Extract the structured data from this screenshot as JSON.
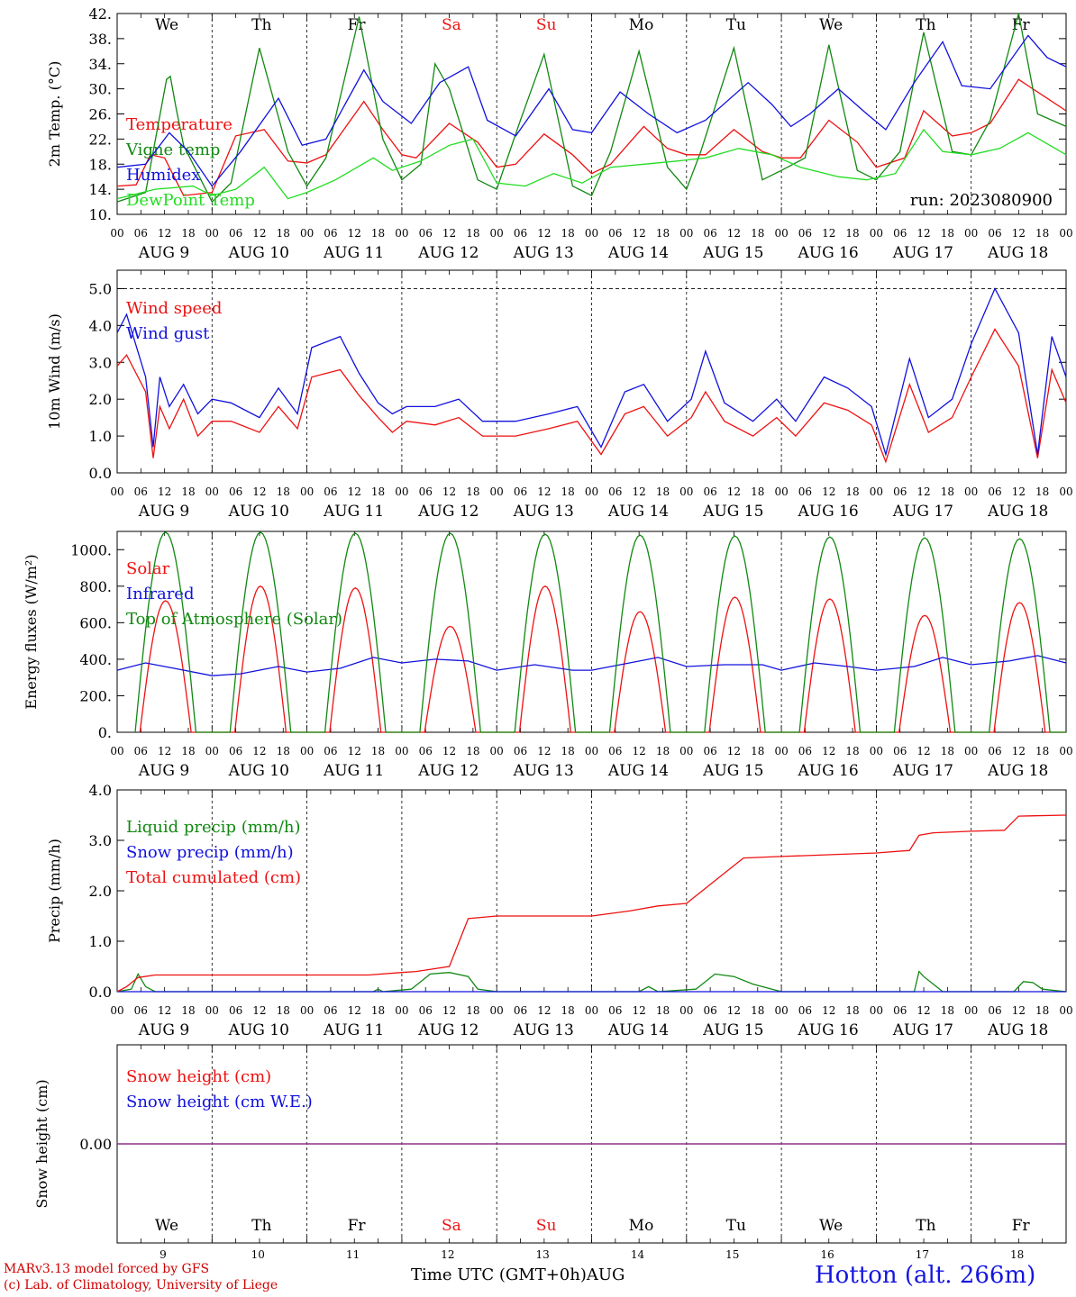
{
  "colors": {
    "red": "#ee1111",
    "green": "#118811",
    "blue": "#1111dd",
    "lightgreen": "#22dd22",
    "purple": "#7a2a9a",
    "axis": "#000000"
  },
  "weekdays": [
    "We",
    "Th",
    "Fr",
    "Sa",
    "Su",
    "Mo",
    "Tu",
    "We",
    "Th",
    "Fr"
  ],
  "weekend_days": [
    "Sa",
    "Su"
  ],
  "hour_ticks": [
    "00",
    "06",
    "12",
    "18"
  ],
  "date_labels": [
    "AUG  9",
    "AUG 10",
    "AUG 11",
    "AUG 12",
    "AUG 13",
    "AUG 14",
    "AUG 15",
    "AUG 16",
    "AUG 17",
    "AUG 18"
  ],
  "day_numbers": [
    "9",
    "10",
    "11",
    "12",
    "13",
    "14",
    "15",
    "16",
    "17",
    "18"
  ],
  "run_label": "run: 2023080900",
  "footer": {
    "model": "MARv3.13 model forced by GFS",
    "credit": "(c) Lab. of Climatology, University of Liege",
    "time_axis": "Time UTC (GMT+0h)",
    "month": "AUG",
    "site": "Hotton (alt. 266m)"
  },
  "chart_data": [
    {
      "type": "line",
      "id": "temp",
      "ylabel": "2m Temp. (°C)",
      "ylim": [
        10,
        42
      ],
      "yticks": [
        "10.",
        "14.",
        "18.",
        "22.",
        "26.",
        "30.",
        "34.",
        "38.",
        "42."
      ],
      "x_unit": "days since 2023-08-09 00 UTC",
      "series": [
        {
          "name": "Temperature",
          "color": "red",
          "x": [
            0,
            0.2,
            0.35,
            0.5,
            0.7,
            1,
            1.25,
            1.55,
            1.8,
            2,
            2.2,
            2.6,
            2.8,
            3,
            3.15,
            3.5,
            3.8,
            4,
            4.2,
            4.5,
            4.8,
            5,
            5.2,
            5.55,
            5.8,
            6,
            6.2,
            6.5,
            6.8,
            7,
            7.2,
            7.5,
            7.8,
            8,
            8.3,
            8.5,
            8.8,
            9,
            9.2,
            9.5,
            9.8,
            10
          ],
          "y": [
            14.5,
            14.7,
            19.5,
            19,
            13,
            13.5,
            22.5,
            23.5,
            18.5,
            18.2,
            19.5,
            28,
            23.5,
            19.5,
            19,
            24.5,
            21.5,
            17.5,
            18,
            22.8,
            19.5,
            16.5,
            18,
            24,
            20.5,
            19.5,
            19.5,
            23.5,
            20,
            19,
            19,
            25,
            21.5,
            17.5,
            19,
            26.5,
            22.5,
            23,
            24.5,
            31.5,
            28.5,
            26.5
          ]
        },
        {
          "name": "Vigne temp",
          "color": "green",
          "x": [
            0,
            0.3,
            0.52,
            0.56,
            0.62,
            0.7,
            1,
            1.2,
            1.5,
            1.8,
            2,
            2.2,
            2.55,
            2.8,
            3,
            3.2,
            3.35,
            3.5,
            3.8,
            4,
            4.25,
            4.5,
            4.8,
            5,
            5.2,
            5.5,
            5.8,
            6,
            6.15,
            6.5,
            6.8,
            7,
            7.25,
            7.5,
            7.8,
            8,
            8.25,
            8.5,
            8.8,
            9,
            9.2,
            9.5,
            9.7,
            10
          ],
          "y": [
            12,
            13.5,
            31.5,
            32,
            27,
            21,
            12,
            15,
            36.5,
            20,
            14.5,
            19,
            41.5,
            22,
            15.5,
            18,
            34,
            30,
            15.5,
            14,
            25,
            35.5,
            14.5,
            13,
            20,
            36,
            17.5,
            14,
            20,
            36.5,
            15.5,
            17,
            19,
            37,
            17,
            15.5,
            20,
            39,
            20,
            19.5,
            25,
            42,
            26,
            24
          ]
        },
        {
          "name": "Humidex",
          "color": "blue",
          "x": [
            0,
            0.3,
            0.55,
            0.75,
            1,
            1.3,
            1.7,
            1.95,
            2.2,
            2.6,
            2.8,
            3.1,
            3.4,
            3.7,
            3.9,
            4.2,
            4.55,
            4.8,
            5,
            5.3,
            5.6,
            5.9,
            6.2,
            6.65,
            6.9,
            7.1,
            7.3,
            7.6,
            7.9,
            8.1,
            8.4,
            8.7,
            8.9,
            9.2,
            9.6,
            9.8,
            10
          ],
          "y": [
            17.5,
            18,
            23,
            20,
            14.5,
            20,
            28.5,
            21,
            22,
            33,
            28,
            24.5,
            31,
            33.5,
            25,
            22.5,
            30,
            23.5,
            23,
            29.5,
            26,
            23,
            25,
            31,
            27.5,
            24,
            26,
            30,
            26,
            23.5,
            31,
            37.5,
            30.5,
            30,
            38.5,
            35,
            33.5
          ]
        },
        {
          "name": "DewPoint Temp",
          "color": "lightgreen",
          "x": [
            0,
            0.4,
            0.8,
            1,
            1.25,
            1.55,
            1.8,
            2,
            2.3,
            2.7,
            2.9,
            3.2,
            3.5,
            3.75,
            4,
            4.3,
            4.6,
            4.9,
            5.2,
            5.55,
            5.9,
            6.2,
            6.55,
            6.9,
            7.2,
            7.6,
            7.9,
            8.2,
            8.5,
            8.7,
            9,
            9.3,
            9.6,
            10
          ],
          "y": [
            12.5,
            14,
            14.5,
            13,
            14,
            17.5,
            12.5,
            13.5,
            15.5,
            19,
            17,
            18.5,
            21,
            22,
            15,
            14.5,
            16.5,
            15,
            17.5,
            18,
            18.5,
            19,
            20.5,
            19.5,
            17.5,
            16,
            15.5,
            16.5,
            23.5,
            20,
            19.5,
            20.5,
            23,
            19.5
          ]
        }
      ]
    },
    {
      "type": "line",
      "id": "wind",
      "ylabel": "10m Wind (m/s)",
      "ylim": [
        0,
        5.5
      ],
      "yticks": [
        "0.0",
        "1.0",
        "2.0",
        "3.0",
        "4.0",
        "5.0"
      ],
      "series": [
        {
          "name": "Wind speed",
          "color": "red",
          "x": [
            0,
            0.1,
            0.3,
            0.38,
            0.45,
            0.55,
            0.7,
            0.85,
            1,
            1.2,
            1.5,
            1.7,
            1.9,
            2.05,
            2.35,
            2.55,
            2.75,
            2.9,
            3.05,
            3.35,
            3.6,
            3.85,
            4.2,
            4.55,
            4.85,
            5.1,
            5.35,
            5.55,
            5.8,
            6.05,
            6.2,
            6.4,
            6.7,
            6.95,
            7.15,
            7.45,
            7.7,
            7.95,
            8.1,
            8.35,
            8.55,
            8.8,
            9,
            9.25,
            9.5,
            9.7,
            9.85,
            10
          ],
          "y": [
            2.9,
            3.2,
            2.2,
            0.4,
            1.8,
            1.2,
            2.0,
            1.0,
            1.4,
            1.4,
            1.1,
            1.8,
            1.2,
            2.6,
            2.8,
            2.1,
            1.5,
            1.1,
            1.4,
            1.3,
            1.5,
            1.0,
            1.0,
            1.2,
            1.4,
            0.5,
            1.6,
            1.8,
            1.0,
            1.5,
            2.2,
            1.4,
            1.0,
            1.5,
            1.0,
            1.9,
            1.7,
            1.3,
            0.3,
            2.4,
            1.1,
            1.5,
            2.6,
            3.9,
            2.9,
            0.4,
            2.8,
            1.9
          ]
        },
        {
          "name": "Wind gust",
          "color": "blue",
          "x": [
            0,
            0.1,
            0.3,
            0.38,
            0.45,
            0.55,
            0.7,
            0.85,
            1,
            1.2,
            1.5,
            1.7,
            1.9,
            2.05,
            2.35,
            2.55,
            2.75,
            2.9,
            3.05,
            3.35,
            3.6,
            3.85,
            4.2,
            4.55,
            4.85,
            5.1,
            5.35,
            5.55,
            5.8,
            6.05,
            6.2,
            6.4,
            6.7,
            6.95,
            7.15,
            7.45,
            7.7,
            7.95,
            8.1,
            8.35,
            8.55,
            8.8,
            9,
            9.25,
            9.5,
            9.7,
            9.85,
            10
          ],
          "y": [
            3.8,
            4.3,
            2.6,
            0.7,
            2.6,
            1.8,
            2.4,
            1.6,
            2.0,
            1.9,
            1.5,
            2.3,
            1.6,
            3.4,
            3.7,
            2.7,
            1.9,
            1.6,
            1.8,
            1.8,
            2.0,
            1.4,
            1.4,
            1.6,
            1.8,
            0.7,
            2.2,
            2.4,
            1.4,
            2.0,
            3.3,
            1.9,
            1.4,
            2.0,
            1.4,
            2.6,
            2.3,
            1.8,
            0.5,
            3.1,
            1.5,
            2.0,
            3.5,
            5.0,
            3.8,
            0.5,
            3.7,
            2.6
          ]
        }
      ]
    },
    {
      "type": "line",
      "id": "energy",
      "ylabel": "Energy fluxes (W/m²)",
      "ylim": [
        0,
        1100
      ],
      "yticks": [
        "0.",
        "200.",
        "400.",
        "600.",
        "800.",
        "1000."
      ],
      "series": [
        {
          "name": "Solar",
          "color": "red",
          "day_peaks": [
            720,
            800,
            790,
            580,
            800,
            660,
            740,
            730,
            640,
            710
          ]
        },
        {
          "name": "Infrared",
          "color": "blue",
          "x": [
            0,
            0.3,
            0.6,
            1,
            1.3,
            1.7,
            2,
            2.35,
            2.7,
            3,
            3.35,
            3.7,
            4,
            4.4,
            4.8,
            5,
            5.4,
            5.7,
            6,
            6.4,
            6.8,
            7,
            7.35,
            7.7,
            8,
            8.4,
            8.7,
            9,
            9.4,
            9.7,
            10
          ],
          "y": [
            340,
            380,
            350,
            310,
            320,
            360,
            330,
            350,
            410,
            380,
            400,
            390,
            340,
            370,
            340,
            340,
            380,
            410,
            360,
            370,
            370,
            340,
            380,
            360,
            340,
            360,
            410,
            370,
            390,
            420,
            380
          ]
        },
        {
          "name": "Top of Atmosphere (Solar)",
          "color": "green",
          "day_peaks": [
            1095,
            1095,
            1090,
            1090,
            1085,
            1080,
            1075,
            1070,
            1065,
            1060
          ]
        }
      ]
    },
    {
      "type": "line",
      "id": "precip",
      "ylabel": "Precip (mm/h)",
      "ylim": [
        0,
        4
      ],
      "yticks": [
        "0.0",
        "1.0",
        "2.0",
        "3.0",
        "4.0"
      ],
      "series": [
        {
          "name": "Liquid precip (mm/h)",
          "color": "green",
          "x": [
            0,
            0.15,
            0.22,
            0.3,
            0.4,
            1,
            2.7,
            2.75,
            2.8,
            3.1,
            3.3,
            3.5,
            3.7,
            3.8,
            4,
            5.5,
            5.6,
            5.7,
            6.1,
            6.3,
            6.5,
            6.7,
            6.9,
            7,
            8.4,
            8.45,
            8.5,
            8.6,
            8.7,
            9.45,
            9.55,
            9.65,
            9.75,
            10
          ],
          "y": [
            0,
            0.05,
            0.35,
            0.1,
            0,
            0,
            0,
            0.05,
            0,
            0.05,
            0.35,
            0.38,
            0.3,
            0.05,
            0,
            0,
            0.1,
            0,
            0.05,
            0.35,
            0.3,
            0.15,
            0.05,
            0,
            0,
            0.4,
            0.3,
            0.15,
            0,
            0,
            0.2,
            0.18,
            0.05,
            0
          ]
        },
        {
          "name": "Snow precip (mm/h)",
          "color": "blue",
          "x": [
            0,
            10
          ],
          "y": [
            0,
            0
          ]
        },
        {
          "name": "Total cumulated (cm)",
          "color": "red",
          "x": [
            0,
            0.1,
            0.22,
            0.4,
            1,
            2,
            2.65,
            3,
            3.15,
            3.5,
            3.7,
            4,
            5,
            5.4,
            5.7,
            6,
            6.3,
            6.6,
            7,
            8,
            8.35,
            8.45,
            8.6,
            9,
            9.35,
            9.5,
            10
          ],
          "y": [
            0,
            0.1,
            0.28,
            0.33,
            0.33,
            0.33,
            0.33,
            0.38,
            0.4,
            0.5,
            1.45,
            1.5,
            1.5,
            1.6,
            1.7,
            1.75,
            2.2,
            2.65,
            2.68,
            2.75,
            2.8,
            3.1,
            3.15,
            3.18,
            3.2,
            3.48,
            3.5
          ]
        }
      ]
    },
    {
      "type": "line",
      "id": "snow",
      "ylabel": "Snow height (cm)",
      "yticks": [
        "0.00"
      ],
      "series": [
        {
          "name": "Snow height (cm)",
          "color": "red",
          "x": [
            0,
            10
          ],
          "y": [
            0,
            0
          ]
        },
        {
          "name": "Snow height (cm W.E.)",
          "color": "blue",
          "x": [
            0,
            10
          ],
          "y": [
            0,
            0
          ]
        }
      ]
    }
  ]
}
